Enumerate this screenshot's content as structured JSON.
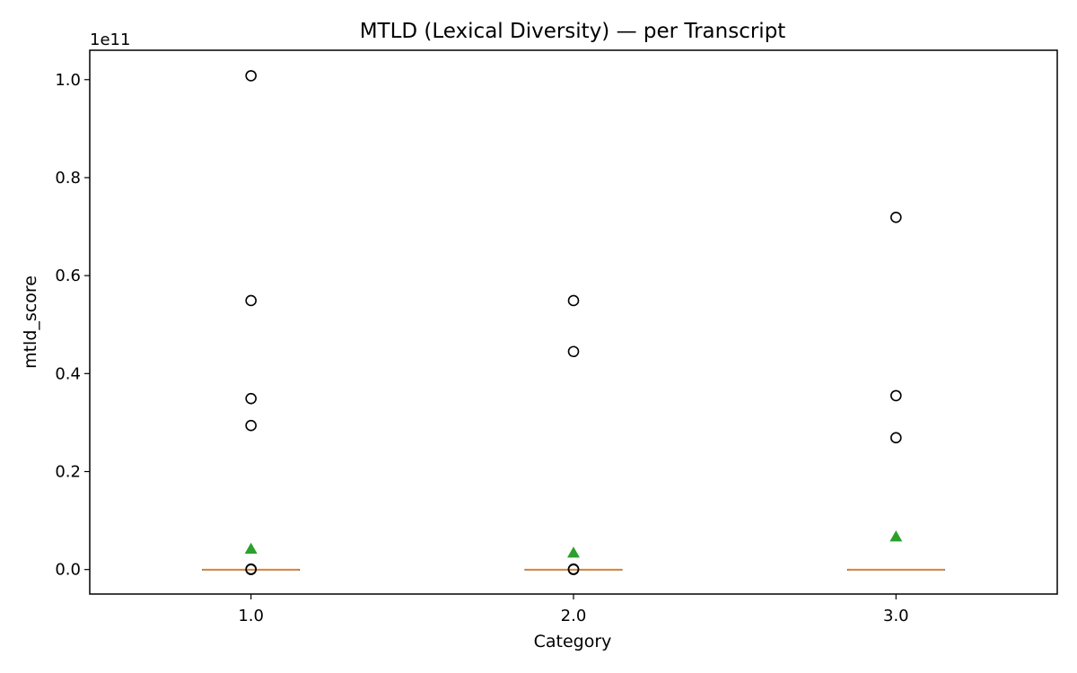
{
  "chart_data": {
    "type": "box",
    "title": "MTLD (Lexical Diversity) — per Transcript",
    "xlabel": "Category",
    "ylabel": "mtld_score",
    "y_offset_label": "1e11",
    "categories": [
      "1.0",
      "2.0",
      "3.0"
    ],
    "x_positions": [
      1.0,
      2.0,
      3.0
    ],
    "xlim": [
      0.5,
      3.5
    ],
    "ylim": [
      -0.05,
      1.06
    ],
    "y_ticks": [
      0.0,
      0.2,
      0.4,
      0.6,
      0.8,
      1.0
    ],
    "y_tick_labels": [
      "0.0",
      "0.2",
      "0.4",
      "0.6",
      "0.8",
      "1.0"
    ],
    "y_scale_multiplier": 100000000000,
    "grid": false,
    "boxes": [
      {
        "category": "1.0",
        "q1": 0.0,
        "median": 0.0,
        "q3": 0.0,
        "whisker_low": 0.0,
        "whisker_high": 0.0,
        "mean": 0.042,
        "outliers": [
          1.008,
          0.549,
          0.349,
          0.294,
          0.001,
          0.0
        ]
      },
      {
        "category": "2.0",
        "q1": 0.0,
        "median": 0.0,
        "q3": 0.0,
        "whisker_low": 0.0,
        "whisker_high": 0.0,
        "mean": 0.034,
        "outliers": [
          0.549,
          0.445,
          0.001,
          0.0
        ]
      },
      {
        "category": "3.0",
        "q1": 0.0,
        "median": 0.0,
        "q3": 0.0,
        "whisker_low": 0.0,
        "whisker_high": 0.0,
        "mean": 0.067,
        "outliers": [
          0.719,
          0.355,
          0.269
        ]
      }
    ],
    "colors": {
      "median": "#ff7f0e",
      "mean_marker": "#2ca02c",
      "outlier_edge": "#000000",
      "box_edge": "#000000"
    }
  }
}
